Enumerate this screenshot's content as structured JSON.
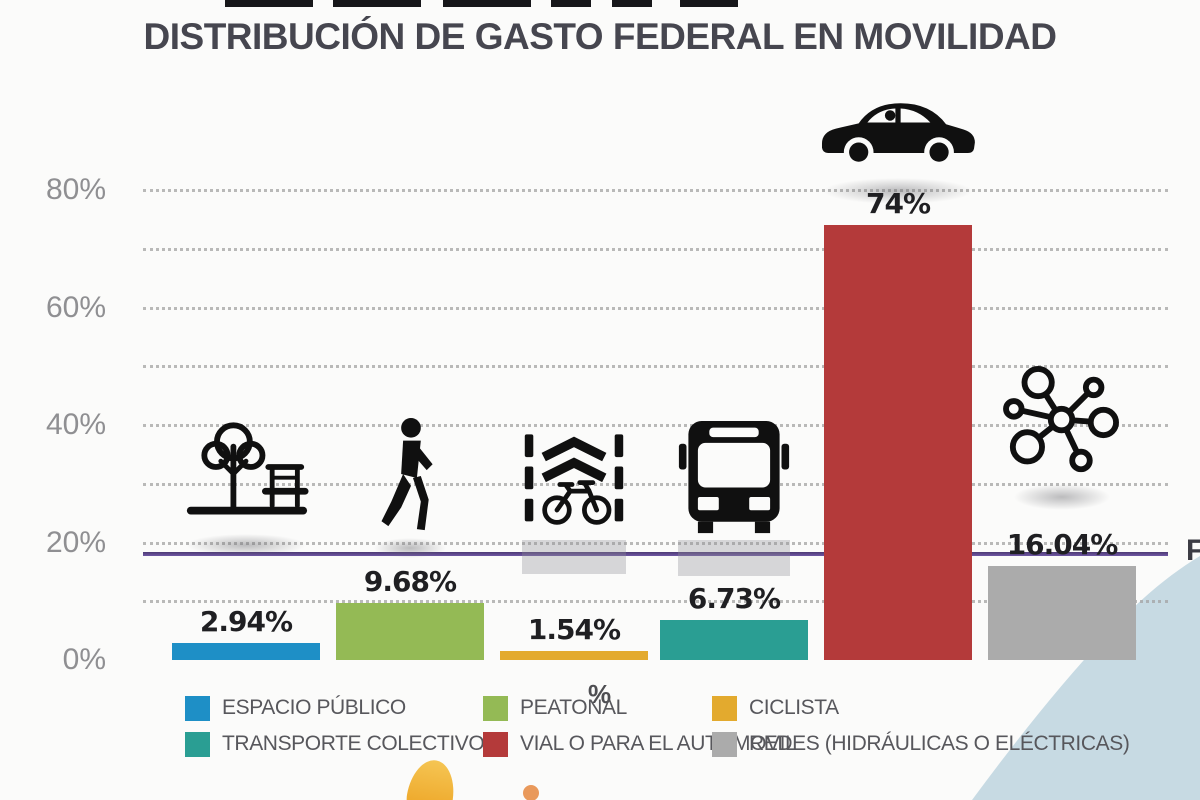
{
  "title": "DISTRIBUCIÓN DE GASTO FEDERAL EN MOVILIDAD",
  "y_axis": {
    "unit_label": "%",
    "ticks": [
      {
        "value": 0,
        "label": "0%"
      },
      {
        "value": 20,
        "label": "20%"
      },
      {
        "value": 40,
        "label": "40%"
      },
      {
        "value": 60,
        "label": "60%"
      },
      {
        "value": 80,
        "label": "80%"
      }
    ]
  },
  "reference_line": {
    "approx_value_pct": 18,
    "color": "#6a4d99",
    "partial_right_label": "F"
  },
  "chart_data": {
    "type": "bar",
    "title": "DISTRIBUCIÓN DE GASTO FEDERAL EN MOVILIDAD",
    "xlabel": "",
    "ylabel": "%",
    "ylim": [
      0,
      88
    ],
    "grid": "dotted horizontal lines every 10%",
    "legend_position": "bottom",
    "categories": [
      "ESPACIO PÚBLICO",
      "PEATONAL",
      "CICLISTA",
      "TRANSPORTE COLECTIVO",
      "VIAL O PARA EL AUTOMOVIL",
      "REDES (HIDRÁULICAS O ELÉCTRICAS)"
    ],
    "values": [
      2.94,
      9.68,
      1.54,
      6.73,
      74,
      16.04
    ],
    "value_labels": [
      "2.94%",
      "9.68%",
      "1.54%",
      "6.73%",
      "74%",
      "16.04%"
    ],
    "colors": [
      "#1e8fc6",
      "#94ba55",
      "#e3aa2e",
      "#2a9e93",
      "#b43a3a",
      "#ababab"
    ],
    "icons": [
      "park-icon",
      "pedestrian-icon",
      "bike-lane-icon",
      "bus-icon",
      "car-icon",
      "network-icon"
    ],
    "reference_line_pct": 18
  },
  "legend": {
    "rows": [
      [
        {
          "label": "ESPACIO PÚBLICO",
          "color": "#1e8fc6"
        },
        {
          "label": "PEATONAL",
          "color": "#94ba55"
        },
        {
          "label": "CICLISTA",
          "color": "#e3aa2e"
        }
      ],
      [
        {
          "label": "TRANSPORTE COLECTIVO",
          "color": "#2a9e93"
        },
        {
          "label": "VIAL O PARA EL AUTOMOVIL",
          "color": "#b43a3a"
        },
        {
          "label": "REDES (HIDRÁULICAS O ELÉCTRICAS)",
          "color": "#ababab"
        }
      ]
    ]
  }
}
